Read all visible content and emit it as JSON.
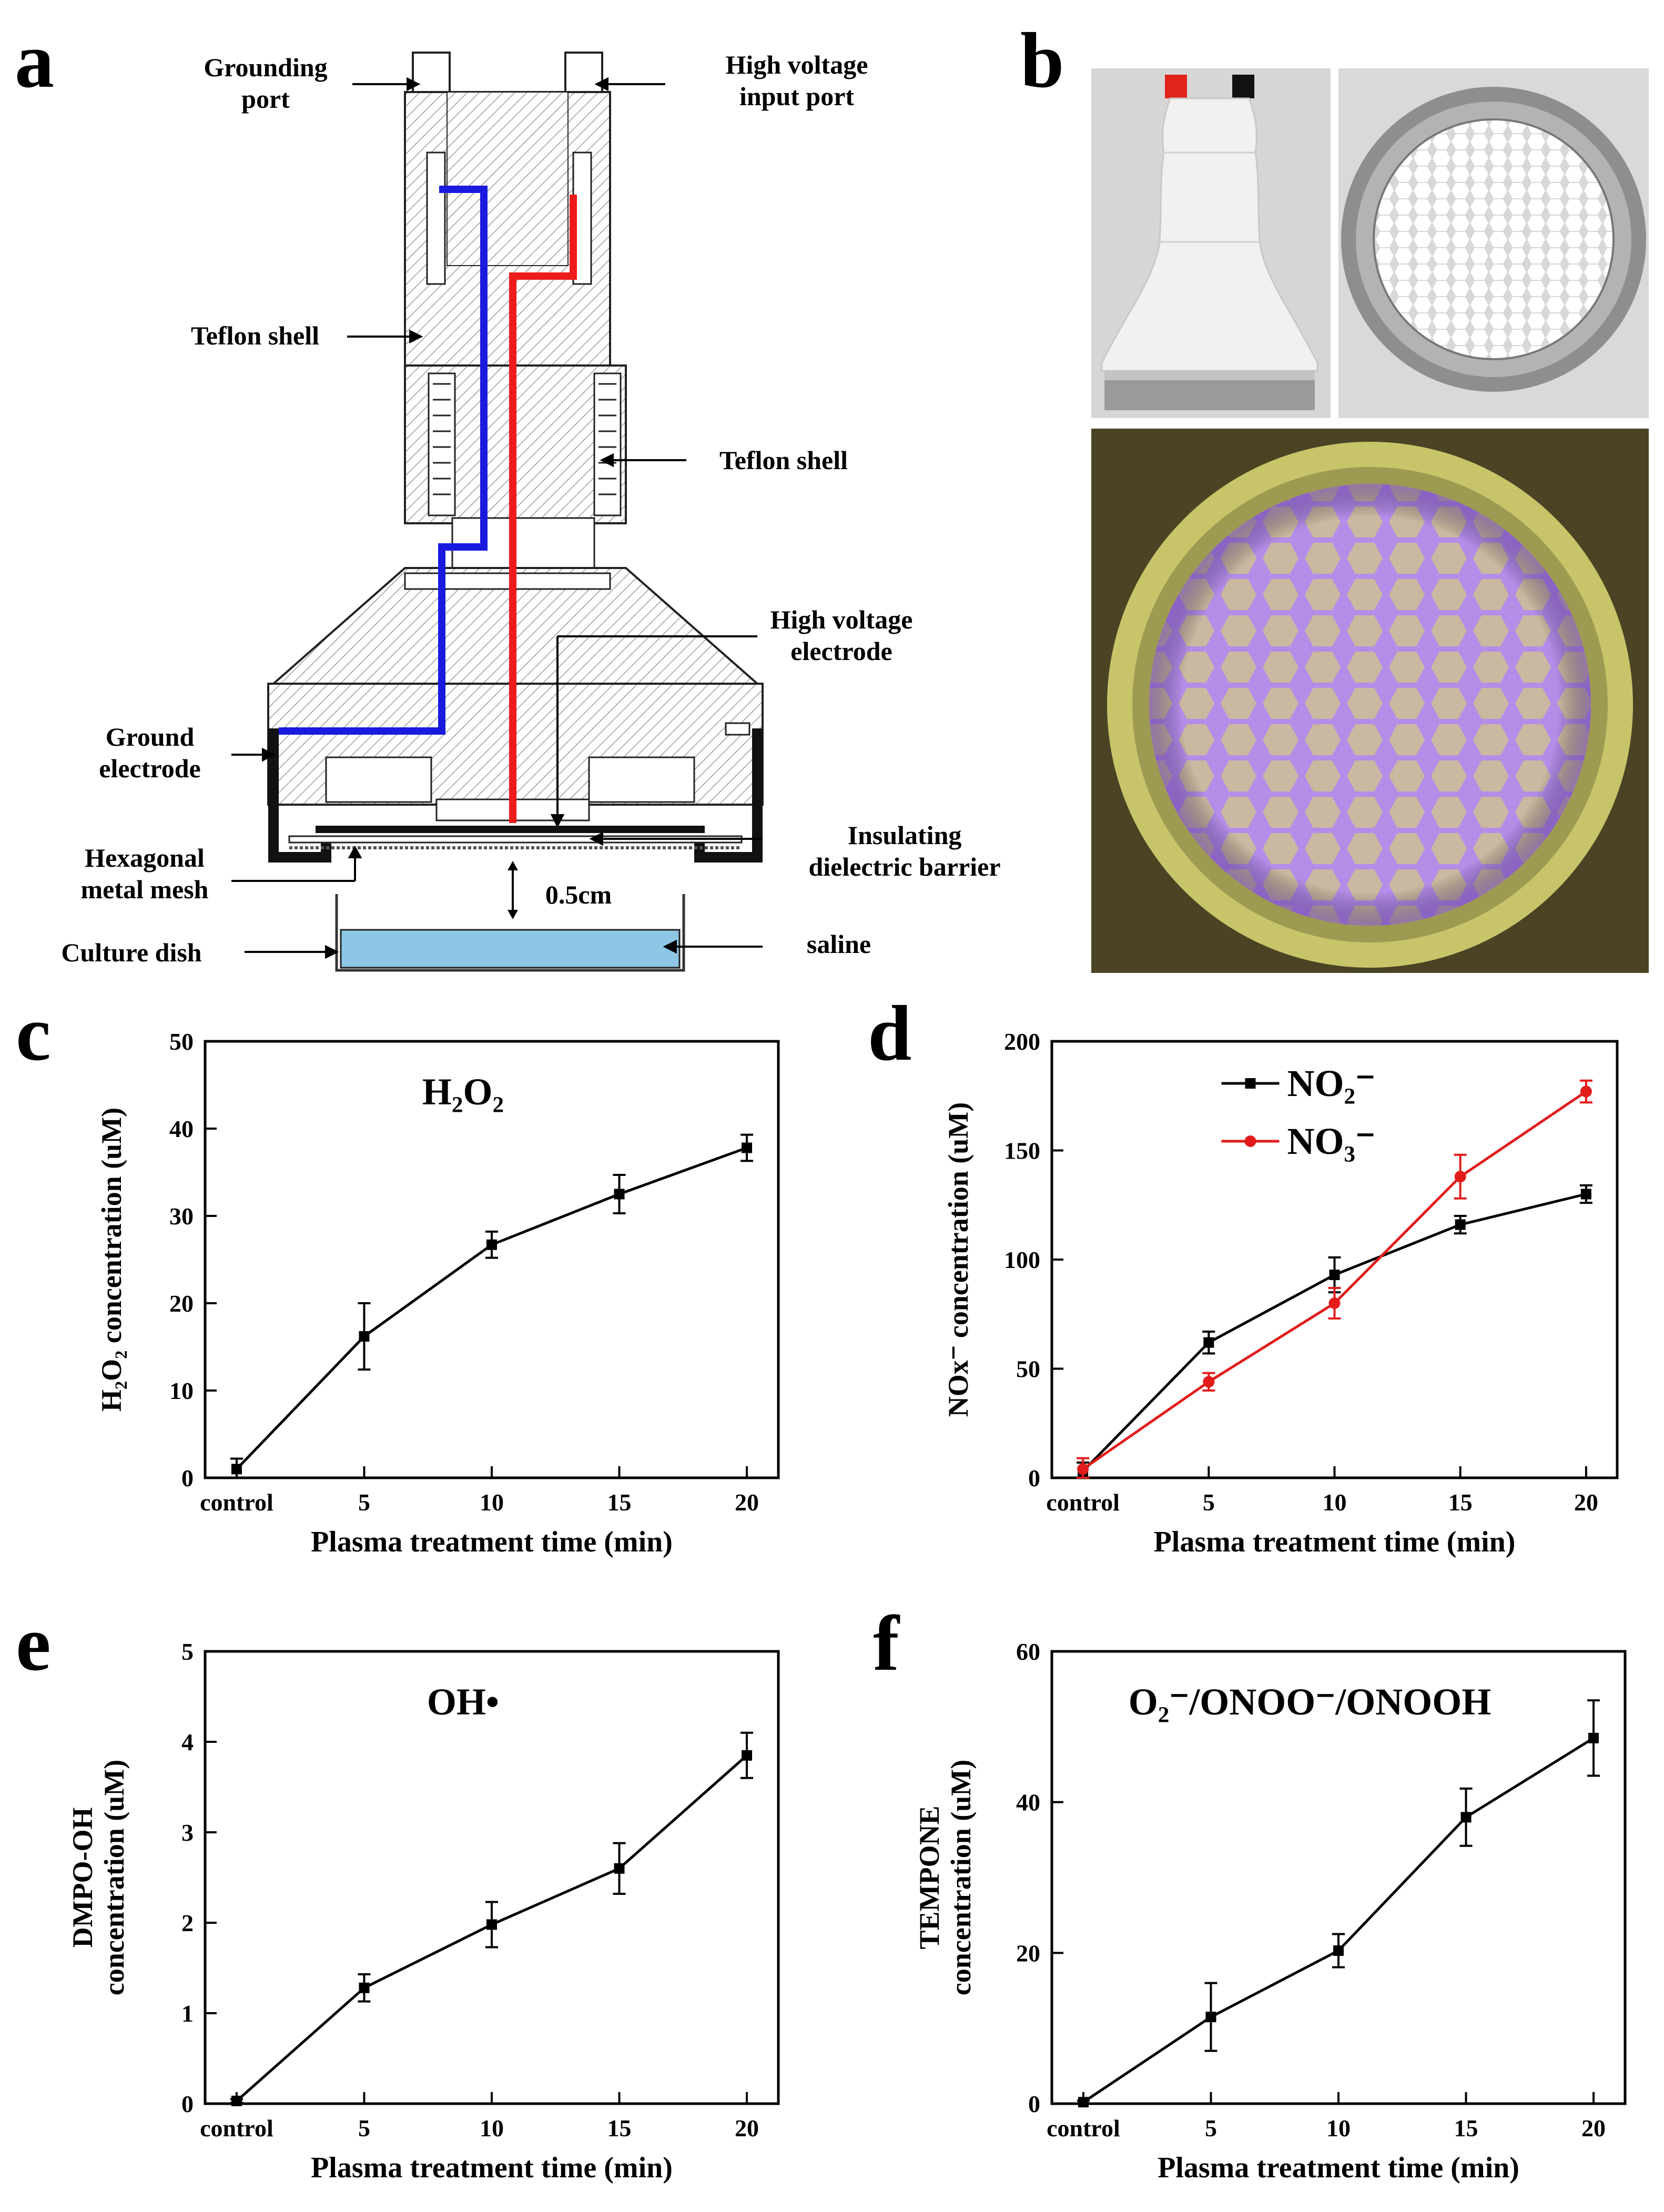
{
  "panels": {
    "a": "a",
    "b": "b",
    "c": "c",
    "d": "d",
    "e": "e",
    "f": "f"
  },
  "diagram": {
    "labels": {
      "grounding_port_line1": "Grounding",
      "grounding_port_line2": "port",
      "hv_input_line1": "High voltage",
      "hv_input_line2": "input port",
      "teflon_shell_left": "Teflon shell",
      "teflon_shell_right": "Teflon shell",
      "hv_electrode_line1": "High voltage",
      "hv_electrode_line2": "electrode",
      "ground_electrode_line1": "Ground",
      "ground_electrode_line2": "electrode",
      "insulating_line1": "Insulating",
      "insulating_line2": "dielectric barrier",
      "hex_mesh_line1": "Hexagonal",
      "hex_mesh_line2": "metal mesh",
      "gap": "0.5cm",
      "culture_dish": "Culture dish",
      "saline": "saline"
    },
    "colors": {
      "ground_wire": "#1a1adf",
      "hv_wire": "#ee1b1b",
      "saline": "#8ec6e6"
    }
  },
  "photos": {
    "colors": {
      "device_body": "#f1f1ef",
      "background": "#d6d6d4",
      "red_cap": "#e0241b",
      "black_cap": "#111111",
      "metal_ring": "#9a9a9c",
      "discharge_bg": "#4a4424",
      "discharge_ring": "#c8c46a",
      "plasma_glow": "#a07ad8"
    }
  },
  "chart_data": [
    {
      "id": "c",
      "type": "line",
      "title": "H₂O₂",
      "xlabel": "Plasma treatment time (min)",
      "ylabel": "H₂O₂ concentration (uM)",
      "categories": [
        "control",
        "5",
        "10",
        "15",
        "20"
      ],
      "ylim": [
        0,
        50
      ],
      "yticks": [
        "0",
        "10",
        "20",
        "30",
        "40",
        "50"
      ],
      "series": [
        {
          "name": "H₂O₂",
          "color": "#000000",
          "values": [
            1,
            16.2,
            26.7,
            32.5,
            37.8
          ],
          "errors": [
            1.2,
            3.8,
            1.5,
            2.2,
            1.5
          ]
        }
      ]
    },
    {
      "id": "d",
      "type": "line",
      "title": "",
      "xlabel": "Plasma treatment time (min)",
      "ylabel": "NOx⁻ concentration (uM)",
      "categories": [
        "control",
        "5",
        "10",
        "15",
        "20"
      ],
      "ylim": [
        0,
        200
      ],
      "yticks": [
        "0",
        "50",
        "100",
        "150",
        "200"
      ],
      "legend": [
        "NO₂⁻",
        "NO₃⁻"
      ],
      "series": [
        {
          "name": "NO₂⁻",
          "color": "#000000",
          "values": [
            3,
            62,
            93,
            116,
            130
          ],
          "errors": [
            4,
            5,
            8,
            4,
            4
          ]
        },
        {
          "name": "NO₃⁻",
          "color": "#e21b1b",
          "values": [
            4,
            44,
            80,
            138,
            177
          ],
          "errors": [
            5,
            4,
            7,
            10,
            5
          ]
        }
      ]
    },
    {
      "id": "e",
      "type": "line",
      "title": "OH•",
      "xlabel": "Plasma treatment time (min)",
      "ylabel_line1": "DMPO-OH",
      "ylabel_line2": "concentration (uM)",
      "categories": [
        "control",
        "5",
        "10",
        "15",
        "20"
      ],
      "ylim": [
        0,
        5
      ],
      "yticks": [
        "0",
        "1",
        "2",
        "3",
        "4",
        "5"
      ],
      "series": [
        {
          "name": "OH•",
          "color": "#000000",
          "values": [
            0.03,
            1.28,
            1.98,
            2.6,
            3.85
          ],
          "errors": [
            0.02,
            0.15,
            0.25,
            0.28,
            0.25
          ]
        }
      ]
    },
    {
      "id": "f",
      "type": "line",
      "title": "O₂⁻/ONOO⁻/ONOOH",
      "xlabel": "Plasma treatment time (min)",
      "ylabel_line1": "TEMPONE",
      "ylabel_line2": "concentration (uM)",
      "categories": [
        "control",
        "5",
        "10",
        "15",
        "20"
      ],
      "ylim": [
        0,
        60
      ],
      "yticks": [
        "0",
        "20",
        "40",
        "60"
      ],
      "series": [
        {
          "name": "O₂⁻/ONOO⁻/ONOOH",
          "color": "#000000",
          "values": [
            0.2,
            11.5,
            20.3,
            38,
            48.5
          ],
          "errors": [
            0.2,
            4.5,
            2.2,
            3.8,
            5
          ]
        }
      ]
    }
  ]
}
